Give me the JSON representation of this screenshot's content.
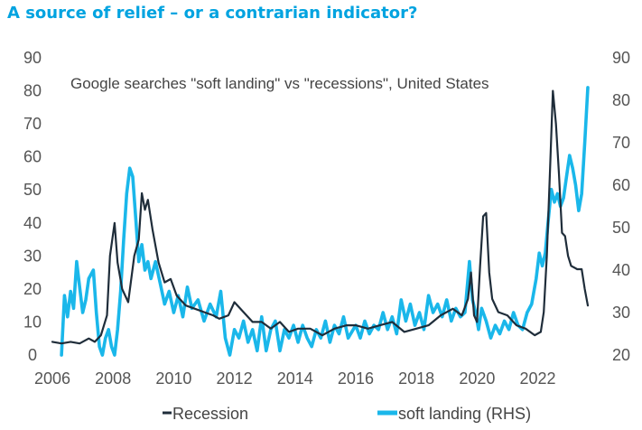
{
  "heading": "A source of relief – or a contrarian indicator?",
  "colors": {
    "heading": "#00a3e0",
    "recession": "#1f2d3a",
    "soft_landing": "#1ab7ea"
  },
  "chart_data": {
    "type": "line",
    "title": "Google searches \"soft landing\" vs \"recessions\", United States",
    "xlabel": "",
    "ylabel": "",
    "x_ticks": [
      "2006",
      "2008",
      "2010",
      "2012",
      "2014",
      "2016",
      "2018",
      "2020",
      "2022"
    ],
    "xlim": [
      2006,
      2023.8
    ],
    "ylim_left": [
      0,
      90
    ],
    "y_ticks_left": [
      "0",
      "10",
      "20",
      "30",
      "40",
      "50",
      "60",
      "70",
      "80",
      "90"
    ],
    "ylim_right": [
      20,
      90
    ],
    "y_ticks_right": [
      "20",
      "30",
      "40",
      "50",
      "60",
      "70",
      "80",
      "90"
    ],
    "grid": false,
    "legend_position": "bottom",
    "series": [
      {
        "name": "Recession",
        "axis": "left",
        "points": [
          [
            2006.0,
            4
          ],
          [
            2006.3,
            3.5
          ],
          [
            2006.6,
            4
          ],
          [
            2006.9,
            3.5
          ],
          [
            2007.2,
            5
          ],
          [
            2007.4,
            4
          ],
          [
            2007.6,
            6
          ],
          [
            2007.8,
            12
          ],
          [
            2007.9,
            30
          ],
          [
            2008.05,
            40
          ],
          [
            2008.15,
            28
          ],
          [
            2008.3,
            20
          ],
          [
            2008.5,
            16
          ],
          [
            2008.7,
            30
          ],
          [
            2008.85,
            35
          ],
          [
            2008.95,
            49
          ],
          [
            2009.05,
            44
          ],
          [
            2009.15,
            47
          ],
          [
            2009.3,
            38
          ],
          [
            2009.5,
            28
          ],
          [
            2009.7,
            22
          ],
          [
            2009.9,
            23
          ],
          [
            2010.1,
            18
          ],
          [
            2010.4,
            15
          ],
          [
            2010.7,
            14
          ],
          [
            2011.0,
            13
          ],
          [
            2011.3,
            12
          ],
          [
            2011.5,
            11
          ],
          [
            2011.8,
            12
          ],
          [
            2012.0,
            16
          ],
          [
            2012.3,
            13
          ],
          [
            2012.6,
            10
          ],
          [
            2012.9,
            10
          ],
          [
            2013.2,
            8
          ],
          [
            2013.5,
            10
          ],
          [
            2013.8,
            7
          ],
          [
            2014.1,
            8
          ],
          [
            2014.5,
            8
          ],
          [
            2014.9,
            6
          ],
          [
            2015.3,
            8
          ],
          [
            2015.7,
            9
          ],
          [
            2016.0,
            9
          ],
          [
            2016.4,
            8
          ],
          [
            2016.8,
            9
          ],
          [
            2017.2,
            10
          ],
          [
            2017.6,
            7
          ],
          [
            2018.0,
            8
          ],
          [
            2018.4,
            9
          ],
          [
            2018.8,
            12
          ],
          [
            2019.2,
            14
          ],
          [
            2019.5,
            12
          ],
          [
            2019.7,
            17
          ],
          [
            2019.8,
            25
          ],
          [
            2019.9,
            12
          ],
          [
            2020.0,
            10
          ],
          [
            2020.1,
            27
          ],
          [
            2020.2,
            42
          ],
          [
            2020.3,
            43
          ],
          [
            2020.4,
            25
          ],
          [
            2020.5,
            17
          ],
          [
            2020.7,
            13
          ],
          [
            2021.0,
            12
          ],
          [
            2021.3,
            9
          ],
          [
            2021.6,
            8
          ],
          [
            2021.9,
            6
          ],
          [
            2022.1,
            7
          ],
          [
            2022.2,
            13
          ],
          [
            2022.3,
            30
          ],
          [
            2022.4,
            55
          ],
          [
            2022.5,
            80
          ],
          [
            2022.6,
            70
          ],
          [
            2022.7,
            55
          ],
          [
            2022.8,
            37
          ],
          [
            2022.9,
            36
          ],
          [
            2023.0,
            30
          ],
          [
            2023.1,
            27
          ],
          [
            2023.3,
            26
          ],
          [
            2023.45,
            26
          ],
          [
            2023.55,
            20
          ],
          [
            2023.65,
            15
          ]
        ]
      },
      {
        "name": "soft landing (RHS)",
        "axis": "right",
        "points": [
          [
            2006.3,
            20
          ],
          [
            2006.4,
            34
          ],
          [
            2006.5,
            29
          ],
          [
            2006.6,
            35
          ],
          [
            2006.7,
            31
          ],
          [
            2006.8,
            42
          ],
          [
            2006.9,
            36
          ],
          [
            2007.0,
            30
          ],
          [
            2007.1,
            33
          ],
          [
            2007.2,
            38
          ],
          [
            2007.35,
            40
          ],
          [
            2007.45,
            30
          ],
          [
            2007.55,
            22
          ],
          [
            2007.65,
            20
          ],
          [
            2007.75,
            24
          ],
          [
            2007.85,
            26
          ],
          [
            2007.95,
            22
          ],
          [
            2008.05,
            20
          ],
          [
            2008.15,
            26
          ],
          [
            2008.25,
            35
          ],
          [
            2008.35,
            47
          ],
          [
            2008.45,
            58
          ],
          [
            2008.55,
            64
          ],
          [
            2008.65,
            62
          ],
          [
            2008.75,
            52
          ],
          [
            2008.85,
            42
          ],
          [
            2008.95,
            46
          ],
          [
            2009.05,
            40
          ],
          [
            2009.15,
            42
          ],
          [
            2009.25,
            38
          ],
          [
            2009.4,
            42
          ],
          [
            2009.55,
            37
          ],
          [
            2009.7,
            32
          ],
          [
            2009.85,
            35
          ],
          [
            2010.0,
            30
          ],
          [
            2010.15,
            34
          ],
          [
            2010.3,
            29
          ],
          [
            2010.45,
            36
          ],
          [
            2010.6,
            31
          ],
          [
            2010.8,
            33
          ],
          [
            2011.0,
            28
          ],
          [
            2011.2,
            32
          ],
          [
            2011.4,
            29
          ],
          [
            2011.55,
            35
          ],
          [
            2011.7,
            24
          ],
          [
            2011.85,
            20
          ],
          [
            2012.0,
            26
          ],
          [
            2012.15,
            24
          ],
          [
            2012.3,
            28
          ],
          [
            2012.45,
            23
          ],
          [
            2012.6,
            26
          ],
          [
            2012.75,
            21
          ],
          [
            2012.9,
            29
          ],
          [
            2013.05,
            21
          ],
          [
            2013.2,
            26
          ],
          [
            2013.35,
            28
          ],
          [
            2013.5,
            21
          ],
          [
            2013.65,
            26
          ],
          [
            2013.8,
            24
          ],
          [
            2013.95,
            27
          ],
          [
            2014.1,
            23
          ],
          [
            2014.25,
            27
          ],
          [
            2014.4,
            24
          ],
          [
            2014.55,
            22
          ],
          [
            2014.7,
            26
          ],
          [
            2014.85,
            24
          ],
          [
            2015.0,
            28
          ],
          [
            2015.15,
            23
          ],
          [
            2015.3,
            27
          ],
          [
            2015.45,
            25
          ],
          [
            2015.6,
            29
          ],
          [
            2015.75,
            24
          ],
          [
            2016.0,
            27
          ],
          [
            2016.15,
            24
          ],
          [
            2016.3,
            28
          ],
          [
            2016.45,
            25
          ],
          [
            2016.6,
            27
          ],
          [
            2016.75,
            26
          ],
          [
            2016.9,
            30
          ],
          [
            2017.05,
            26
          ],
          [
            2017.2,
            29
          ],
          [
            2017.35,
            25
          ],
          [
            2017.5,
            33
          ],
          [
            2017.65,
            28
          ],
          [
            2017.8,
            32
          ],
          [
            2017.95,
            27
          ],
          [
            2018.1,
            30
          ],
          [
            2018.25,
            26
          ],
          [
            2018.4,
            34
          ],
          [
            2018.55,
            30
          ],
          [
            2018.7,
            32
          ],
          [
            2018.85,
            29
          ],
          [
            2019.0,
            33
          ],
          [
            2019.15,
            28
          ],
          [
            2019.3,
            31
          ],
          [
            2019.45,
            29
          ],
          [
            2019.6,
            30
          ],
          [
            2019.75,
            42
          ],
          [
            2019.85,
            33
          ],
          [
            2019.95,
            30
          ],
          [
            2020.05,
            26
          ],
          [
            2020.15,
            31
          ],
          [
            2020.3,
            28
          ],
          [
            2020.45,
            24
          ],
          [
            2020.6,
            27
          ],
          [
            2020.75,
            25
          ],
          [
            2020.9,
            28
          ],
          [
            2021.05,
            26
          ],
          [
            2021.2,
            30
          ],
          [
            2021.35,
            27
          ],
          [
            2021.5,
            26
          ],
          [
            2021.65,
            30
          ],
          [
            2021.8,
            32
          ],
          [
            2021.95,
            38
          ],
          [
            2022.05,
            44
          ],
          [
            2022.15,
            41
          ],
          [
            2022.25,
            44
          ],
          [
            2022.35,
            52
          ],
          [
            2022.45,
            59
          ],
          [
            2022.55,
            56
          ],
          [
            2022.65,
            58
          ],
          [
            2022.75,
            55
          ],
          [
            2022.85,
            57
          ],
          [
            2022.95,
            62
          ],
          [
            2023.05,
            67
          ],
          [
            2023.15,
            64
          ],
          [
            2023.25,
            60
          ],
          [
            2023.35,
            54
          ],
          [
            2023.45,
            58
          ],
          [
            2023.55,
            70
          ],
          [
            2023.65,
            83
          ]
        ]
      }
    ]
  }
}
